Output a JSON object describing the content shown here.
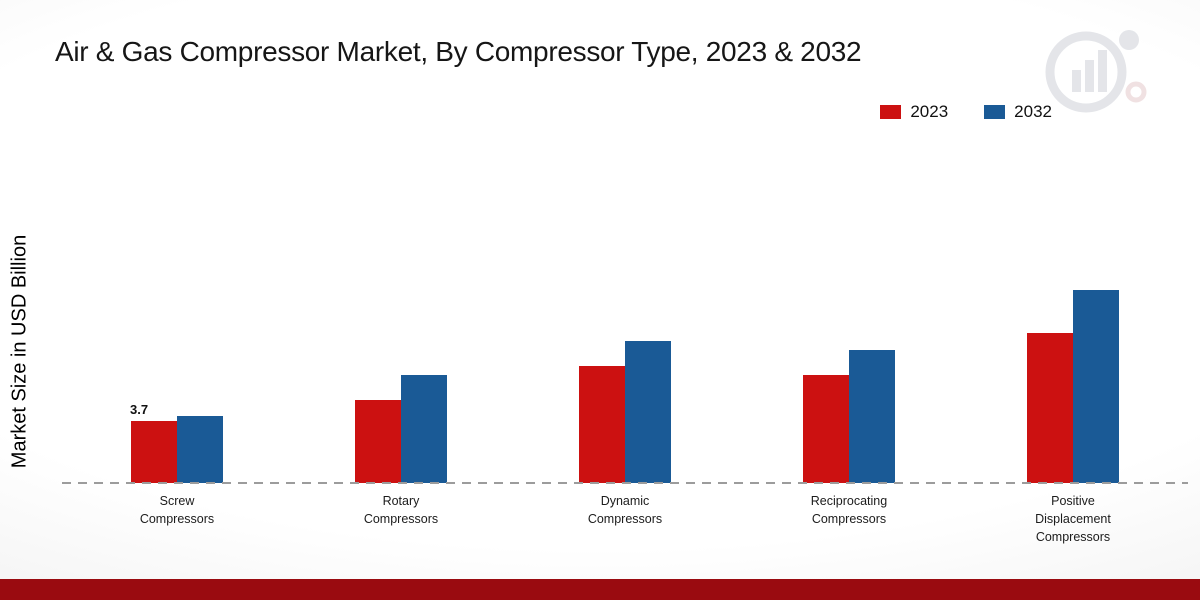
{
  "title": "Air & Gas Compressor Market, By Compressor Type, 2023 & 2032",
  "ylabel": "Market Size in USD Billion",
  "legend": [
    {
      "label": "2023",
      "color": "#cc1111"
    },
    {
      "label": "2032",
      "color": "#1a5a96"
    }
  ],
  "colors": {
    "series_2023": "#cc1111",
    "series_2032": "#1a5a96",
    "footer_bar": "#9a0b10",
    "baseline": "#9c9c9c"
  },
  "chart_data": {
    "type": "bar",
    "title": "Air & Gas Compressor Market, By Compressor Type, 2023 & 2032",
    "xlabel": "",
    "ylabel": "Market Size in USD Billion",
    "ylim": [
      0,
      12
    ],
    "grid": false,
    "legend_position": "top-right",
    "categories": [
      "Screw Compressors",
      "Rotary Compressors",
      "Dynamic Compressors",
      "Reciprocating Compressors",
      "Positive Displacement Compressors"
    ],
    "series": [
      {
        "name": "2023",
        "color": "#cc1111",
        "values": [
          3.7,
          5.0,
          7.0,
          6.5,
          9.0
        ]
      },
      {
        "name": "2032",
        "color": "#1a5a96",
        "values": [
          4.0,
          6.5,
          8.5,
          8.0,
          11.6
        ]
      }
    ],
    "annotations": [
      {
        "series": "2023",
        "category": "Screw Compressors",
        "text": "3.7"
      }
    ]
  }
}
